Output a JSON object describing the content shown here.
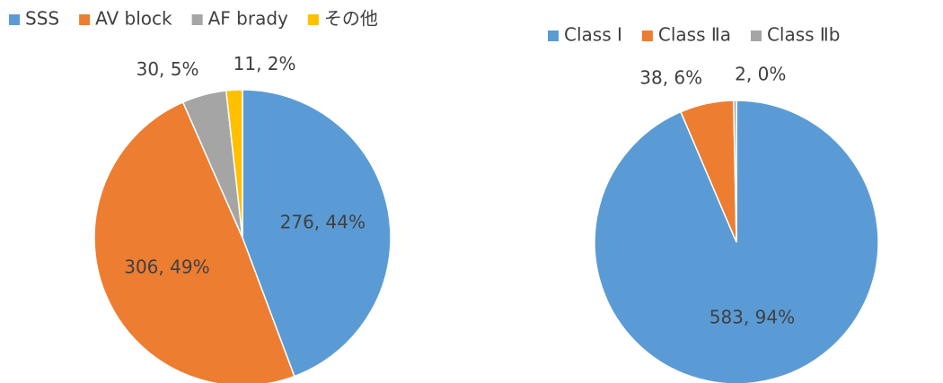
{
  "chart_data": [
    {
      "type": "pie",
      "categories": [
        "SSS",
        "AV block",
        "AF brady",
        "その他"
      ],
      "values": [
        276,
        306,
        30,
        11
      ],
      "value_labels": [
        "276, 44%",
        "306, 49%",
        "30, 5%",
        "11, 2%"
      ],
      "colors": [
        "#5b9bd5",
        "#ed7d31",
        "#a5a5a5",
        "#ffc000"
      ],
      "legend": "top"
    },
    {
      "type": "pie",
      "categories": [
        "Class Ⅰ",
        "Class Ⅱa",
        "Class Ⅱb"
      ],
      "values": [
        583,
        38,
        2
      ],
      "value_labels": [
        "583, 94%",
        "38, 6%",
        "2, 0%"
      ],
      "colors": [
        "#5b9bd5",
        "#ed7d31",
        "#a5a5a5"
      ],
      "legend": "top"
    }
  ]
}
